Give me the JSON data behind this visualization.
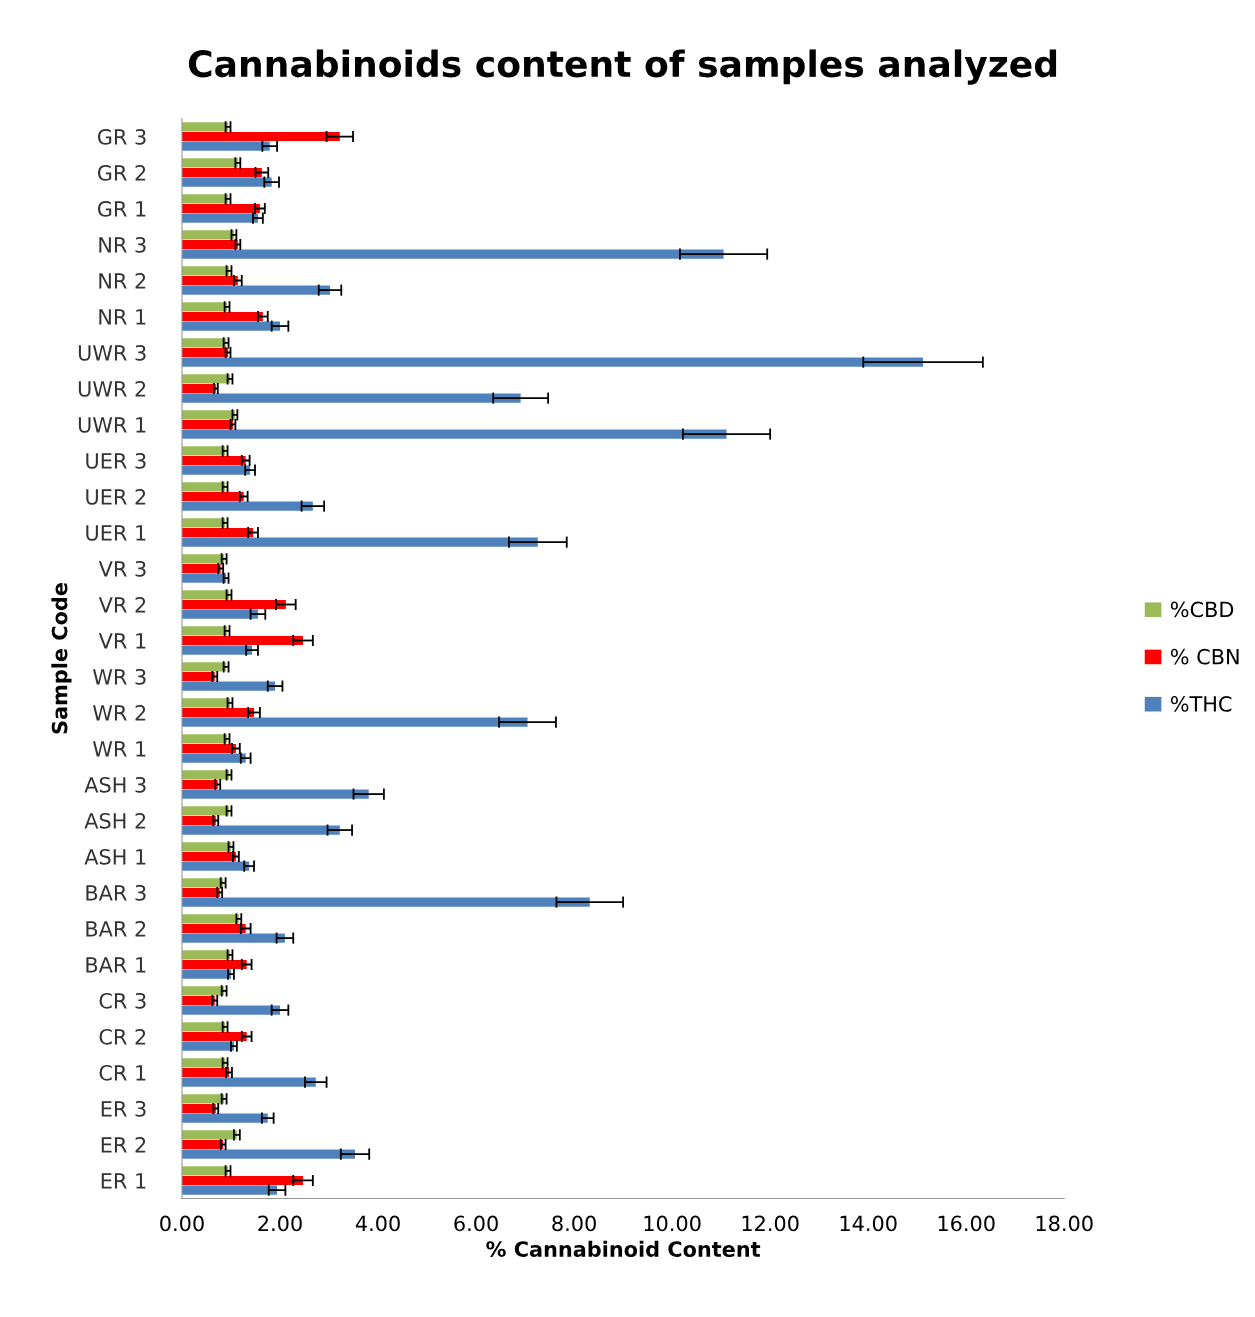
{
  "chart_data": {
    "type": "bar",
    "orientation": "horizontal",
    "title": "Cannabinoids content of samples analyzed",
    "xlabel": "% Cannabinoid Content",
    "ylabel": "Sample Code",
    "categories": [
      "GR 3",
      "GR 2",
      "GR 1",
      "NR 3",
      "NR 2",
      "NR 1",
      "UWR 3",
      "UWR 2",
      "UWR 1",
      "UER 3",
      "UER 2",
      "UER 1",
      "VR 3",
      "VR 2",
      "VR 1",
      "WR 3",
      "WR 2",
      "WR 1",
      "ASH 3",
      "ASH 2",
      "ASH 1",
      "BAR 3",
      "BAR 2",
      "BAR 1",
      "CR 3",
      "CR 2",
      "CR 1",
      "ER 3",
      "ER 2",
      "ER 1"
    ],
    "series": [
      {
        "name": "%CBD",
        "color": "#9bbb59",
        "values": [
          0.94,
          1.14,
          0.94,
          1.06,
          0.96,
          0.92,
          0.9,
          0.98,
          1.08,
          0.88,
          0.88,
          0.88,
          0.86,
          0.96,
          0.92,
          0.9,
          0.98,
          0.92,
          0.96,
          0.96,
          1.0,
          0.84,
          1.16,
          0.98,
          0.86,
          0.88,
          0.88,
          0.86,
          1.12,
          0.94
        ],
        "errors": [
          0.05,
          0.05,
          0.05,
          0.05,
          0.05,
          0.05,
          0.05,
          0.05,
          0.05,
          0.05,
          0.05,
          0.05,
          0.05,
          0.05,
          0.05,
          0.05,
          0.05,
          0.05,
          0.05,
          0.05,
          0.05,
          0.05,
          0.05,
          0.05,
          0.05,
          0.05,
          0.05,
          0.05,
          0.06,
          0.05
        ]
      },
      {
        "name": "% CBN",
        "color": "#ff0000",
        "values": [
          3.22,
          1.63,
          1.59,
          1.14,
          1.14,
          1.65,
          0.94,
          0.69,
          1.04,
          1.3,
          1.26,
          1.45,
          0.79,
          2.12,
          2.47,
          0.67,
          1.47,
          1.1,
          0.73,
          0.69,
          1.1,
          0.77,
          1.3,
          1.32,
          0.67,
          1.32,
          0.96,
          0.69,
          0.84,
          2.47
        ],
        "errors": [
          0.27,
          0.13,
          0.1,
          0.05,
          0.08,
          0.1,
          0.05,
          0.04,
          0.05,
          0.08,
          0.08,
          0.1,
          0.05,
          0.2,
          0.2,
          0.05,
          0.12,
          0.08,
          0.05,
          0.05,
          0.06,
          0.05,
          0.1,
          0.1,
          0.05,
          0.1,
          0.06,
          0.05,
          0.05,
          0.2
        ]
      },
      {
        "name": "%THC",
        "color": "#4f81bd",
        "values": [
          1.79,
          1.83,
          1.55,
          11.05,
          3.02,
          2.0,
          15.12,
          6.91,
          11.11,
          1.39,
          2.67,
          7.26,
          0.9,
          1.55,
          1.43,
          1.9,
          7.05,
          1.3,
          3.81,
          3.22,
          1.37,
          8.32,
          2.1,
          1.0,
          2.0,
          1.06,
          2.73,
          1.75,
          3.53,
          1.94
        ],
        "errors": [
          0.15,
          0.15,
          0.1,
          0.89,
          0.23,
          0.17,
          1.22,
          0.56,
          0.89,
          0.1,
          0.23,
          0.59,
          0.05,
          0.15,
          0.12,
          0.15,
          0.58,
          0.1,
          0.31,
          0.25,
          0.1,
          0.68,
          0.17,
          0.06,
          0.17,
          0.06,
          0.22,
          0.12,
          0.29,
          0.17
        ]
      }
    ],
    "xlim": [
      0,
      18
    ],
    "xticks": [
      {
        "value": 0,
        "label": "0.00"
      },
      {
        "value": 2,
        "label": "2.00"
      },
      {
        "value": 4,
        "label": "4.00"
      },
      {
        "value": 6,
        "label": "6.00"
      },
      {
        "value": 8,
        "label": "8.00"
      },
      {
        "value": 10,
        "label": "10.00"
      },
      {
        "value": 12,
        "label": "12.00"
      },
      {
        "value": 14,
        "label": "14.00"
      },
      {
        "value": 16,
        "label": "16.00"
      },
      {
        "value": 18,
        "label": "18.00"
      }
    ],
    "grid": false,
    "legend": "right"
  }
}
